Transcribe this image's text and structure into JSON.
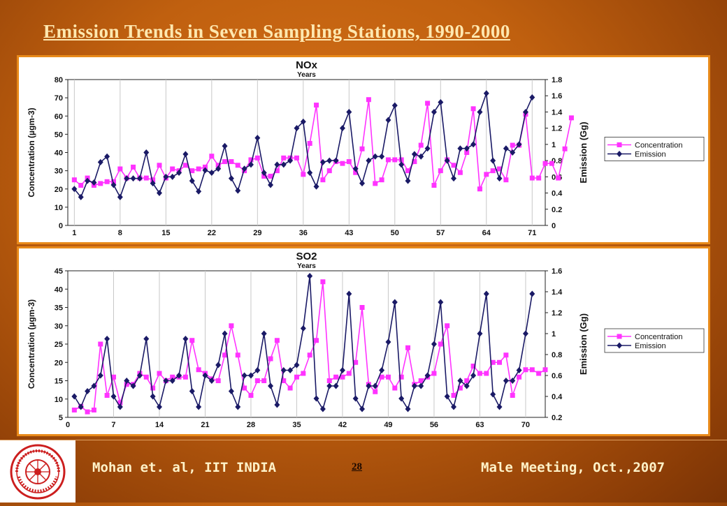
{
  "slide": {
    "title": "Emission Trends in Seven Sampling Stations, 1990-2000",
    "page_number": "28",
    "footer_left": "Mohan et. al, IIT INDIA",
    "footer_right": "Male Meeting, Oct.,2007",
    "logo_icon": "iit-delhi-logo-icon"
  },
  "colors": {
    "concentration": "#ff33ff",
    "emission": "#1a1a66",
    "panel_border": "#e88a1a"
  },
  "chart_data": [
    {
      "type": "line",
      "title": "NOx",
      "subtitle": "Years",
      "xlabel": "",
      "ylabel": "Concentration (µgm-3)",
      "y2label": "Emission (Gg)",
      "ylim": [
        0,
        80
      ],
      "y2lim": [
        0,
        1.8
      ],
      "yticks": [
        0,
        10,
        20,
        30,
        40,
        50,
        60,
        70,
        80
      ],
      "y2ticks": [
        "0",
        "0.2",
        "0.4",
        "0.6",
        "0.8",
        "1",
        "1.2",
        "1.4",
        "1.6",
        "1.8"
      ],
      "xticks": [
        1,
        8,
        15,
        22,
        29,
        36,
        43,
        50,
        57,
        64,
        71
      ],
      "xlim": [
        0,
        73
      ],
      "grid": "vertical",
      "legend_position": "right",
      "series": [
        {
          "name": "Concentration",
          "axis": "left",
          "marker": "square",
          "values": [
            25,
            22,
            26,
            22,
            23,
            24,
            24,
            31,
            26,
            32,
            26,
            26,
            25,
            33,
            26,
            31,
            30,
            33,
            30,
            31,
            32,
            38,
            33,
            35,
            35,
            33,
            30,
            36,
            37,
            27,
            27,
            30,
            37,
            37,
            37,
            28,
            45,
            66,
            25,
            30,
            35,
            34,
            35,
            29,
            42,
            69,
            23,
            25,
            36,
            36,
            36,
            30,
            35,
            44,
            67,
            22,
            30,
            36,
            33,
            29,
            40,
            64,
            20,
            28,
            30,
            31,
            25,
            44,
            44,
            61,
            26,
            26,
            34,
            34,
            26,
            42,
            59
          ]
        },
        {
          "name": "Emission",
          "axis": "right",
          "marker": "diamond",
          "values": [
            0.45,
            0.35,
            0.55,
            0.53,
            0.78,
            0.85,
            0.5,
            0.35,
            0.58,
            0.58,
            0.58,
            0.9,
            0.52,
            0.4,
            0.6,
            0.6,
            0.65,
            0.88,
            0.55,
            0.42,
            0.68,
            0.65,
            0.7,
            0.98,
            0.58,
            0.43,
            0.7,
            0.75,
            1.08,
            0.65,
            0.5,
            0.75,
            0.75,
            0.8,
            1.2,
            1.28,
            0.65,
            0.48,
            0.78,
            0.8,
            0.8,
            1.2,
            1.4,
            0.7,
            0.52,
            0.8,
            0.85,
            0.85,
            1.3,
            1.48,
            0.75,
            0.55,
            0.88,
            0.85,
            0.95,
            1.4,
            1.52,
            0.8,
            0.58,
            0.95,
            0.95,
            1.0,
            1.4,
            1.63,
            0.8,
            0.58,
            0.95,
            0.9,
            1.0,
            1.4,
            1.58
          ]
        }
      ]
    },
    {
      "type": "line",
      "title": "SO2",
      "subtitle": "Years",
      "xlabel": "",
      "ylabel": "Concentration (µgm-3)",
      "y2label": "Emission (Gg)",
      "ylim": [
        5,
        45
      ],
      "y2lim": [
        0.2,
        1.6
      ],
      "yticks": [
        5,
        10,
        15,
        20,
        25,
        30,
        35,
        40,
        45
      ],
      "y2ticks": [
        "0.2",
        "0.4",
        "0.6",
        "0.8",
        "1",
        "1.2",
        "1.4",
        "1.6"
      ],
      "xticks": [
        0,
        7,
        14,
        21,
        28,
        35,
        42,
        49,
        56,
        63,
        70
      ],
      "xlim": [
        0,
        73
      ],
      "grid": "vertical",
      "legend_position": "right",
      "series": [
        {
          "name": "Concentration",
          "axis": "left",
          "marker": "square",
          "values": [
            7,
            8,
            6.5,
            7,
            25,
            11,
            16,
            9,
            14,
            14,
            17,
            16,
            13,
            17,
            15,
            16,
            16,
            16,
            26,
            18,
            17,
            15.5,
            15,
            22,
            30,
            22,
            13,
            11,
            15,
            15,
            21,
            26,
            15,
            13,
            16,
            17,
            22,
            26,
            42,
            15,
            16,
            16,
            17,
            20,
            35,
            14,
            12,
            16,
            16,
            13,
            16,
            24,
            14,
            15,
            16,
            17,
            25,
            30,
            11,
            13,
            15,
            19,
            17,
            17,
            20,
            20,
            22,
            11,
            16,
            18,
            18,
            17,
            18
          ]
        },
        {
          "name": "Emission",
          "axis": "right",
          "marker": "diamond",
          "values": [
            0.4,
            0.3,
            0.45,
            0.5,
            0.6,
            0.95,
            0.4,
            0.3,
            0.55,
            0.5,
            0.6,
            0.95,
            0.4,
            0.3,
            0.55,
            0.55,
            0.6,
            0.95,
            0.45,
            0.3,
            0.6,
            0.55,
            0.7,
            1.0,
            0.45,
            0.3,
            0.6,
            0.6,
            0.65,
            1.0,
            0.5,
            0.32,
            0.65,
            0.65,
            0.7,
            1.05,
            1.55,
            0.38,
            0.28,
            0.5,
            0.5,
            0.65,
            1.38,
            0.38,
            0.28,
            0.5,
            0.5,
            0.65,
            0.92,
            1.3,
            0.38,
            0.28,
            0.5,
            0.5,
            0.6,
            0.9,
            1.3,
            0.4,
            0.3,
            0.55,
            0.5,
            0.6,
            1.0,
            1.38,
            0.42,
            0.3,
            0.55,
            0.55,
            0.65,
            1.0,
            1.38
          ]
        }
      ]
    }
  ]
}
